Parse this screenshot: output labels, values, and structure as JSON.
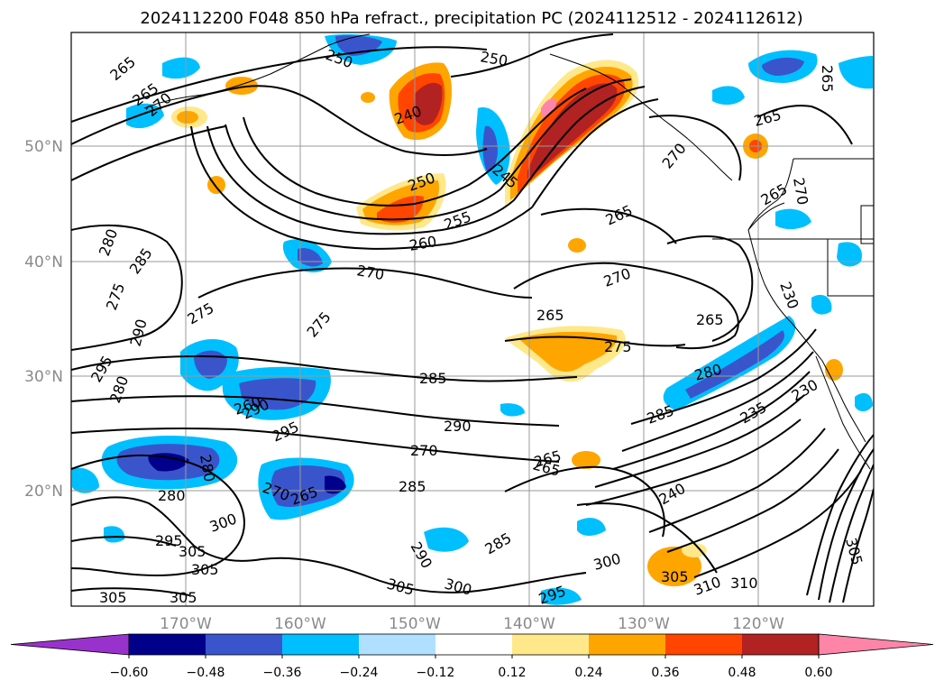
{
  "title": "2024112200 F048 850 hPa refract., precipitation PC (2024112512 - 2024112612)",
  "lat_labels": [
    "50°N",
    "40°N",
    "30°N",
    "20°N"
  ],
  "lon_labels": [
    "170°W",
    "160°W",
    "150°W",
    "140°W",
    "130°W",
    "120°W"
  ],
  "colorbar": {
    "colors": [
      "#9932cc",
      "#00008b",
      "#3a55cc",
      "#00bfff",
      "#b0e0ff",
      "#ffffff",
      "#ffe88a",
      "#ffa500",
      "#ff4500",
      "#b22222",
      "#ff85a8"
    ],
    "tick_labels": [
      "−0.60",
      "−0.48",
      "−0.36",
      "−0.24",
      "−0.12",
      "0.12",
      "0.24",
      "0.36",
      "0.48",
      "0.60"
    ]
  },
  "contour_labels": [
    "265",
    "265",
    "270",
    "250",
    "240",
    "245",
    "265",
    "265",
    "270",
    "250",
    "255",
    "260",
    "270",
    "265",
    "270",
    "280",
    "285",
    "275",
    "290",
    "275",
    "275",
    "265",
    "275",
    "280",
    "290",
    "295",
    "285",
    "290",
    "280",
    "280",
    "295",
    "285",
    "235",
    "230",
    "270",
    "265",
    "265",
    "240",
    "280",
    "270",
    "285",
    "265",
    "300",
    "295",
    "290",
    "285",
    "300",
    "305",
    "310",
    "310",
    "305",
    "305",
    "300",
    "305",
    "295",
    "305",
    "305",
    "305",
    "265",
    "250",
    "265",
    "260",
    "270",
    "230"
  ]
}
